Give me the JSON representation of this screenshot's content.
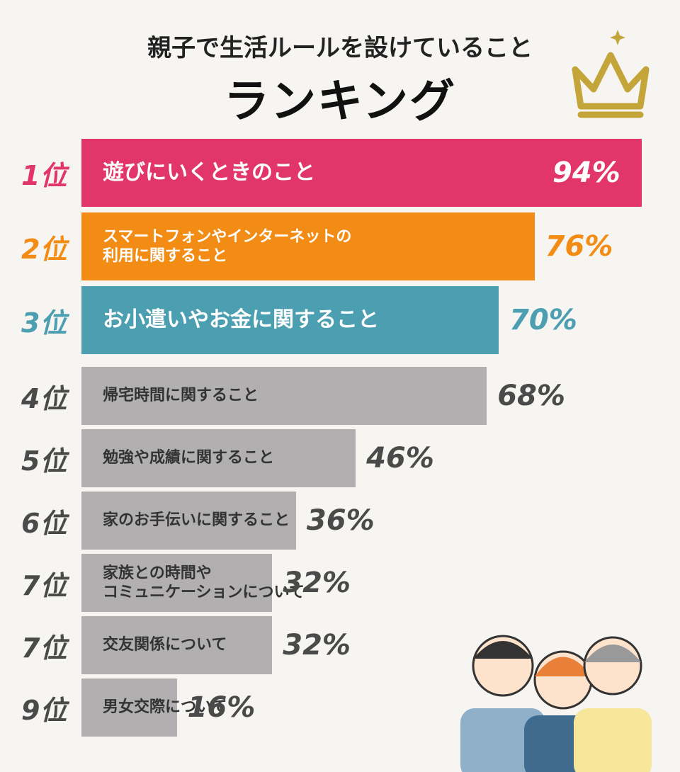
{
  "chart_data": {
    "type": "bar",
    "title": "親子で生活ルールを設けていること",
    "subtitle": "ランキング",
    "ranks": [
      "1位",
      "2位",
      "3位",
      "4位",
      "5位",
      "6位",
      "7位",
      "7位",
      "9位"
    ],
    "categories": [
      "遊びにいくときのこと",
      "スマートフォンやインターネットの\n利用に関すること",
      "お小遣いやお金に関すること",
      "帰宅時間に関すること",
      "勉強や成績に関すること",
      "家のお手伝いに関すること",
      "家族との時間や\nコミュニケーションについて",
      "交友関係について",
      "男女交際について"
    ],
    "values": [
      94,
      76,
      70,
      68,
      46,
      36,
      32,
      32,
      16
    ],
    "value_labels": [
      "94%",
      "76%",
      "70%",
      "68%",
      "46%",
      "36%",
      "32%",
      "32%",
      "16%"
    ],
    "colors": [
      "#e2366b",
      "#f28c14",
      "#4b9fb1",
      "#b1afaf",
      "#b1afaf",
      "#b1afaf",
      "#b1afaf",
      "#b1afaf",
      "#b1afaf"
    ],
    "xlim": [
      0,
      100
    ]
  }
}
